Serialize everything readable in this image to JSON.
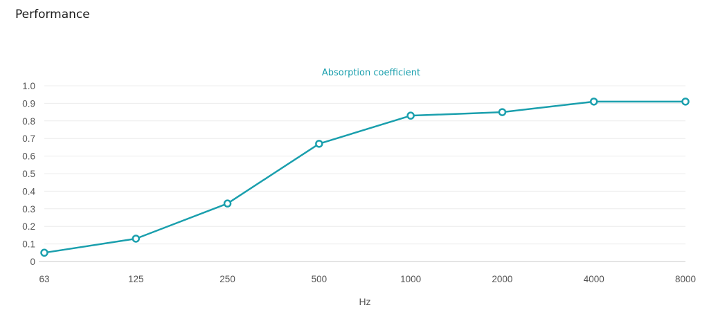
{
  "section": {
    "title": "Performance"
  },
  "chart_data": {
    "type": "line",
    "title": "Absorption coefficient",
    "xlabel": "Hz",
    "ylabel": "",
    "categories": [
      "63",
      "125",
      "250",
      "500",
      "1000",
      "2000",
      "4000",
      "8000"
    ],
    "series": [
      {
        "values": [
          0.05,
          0.13,
          0.33,
          0.67,
          0.83,
          0.85,
          0.91,
          0.91
        ]
      }
    ],
    "ylim": [
      0,
      1.0
    ],
    "yticks": [
      "0",
      "0.1",
      "0.2",
      "0.3",
      "0.4",
      "0.5",
      "0.6",
      "0.7",
      "0.8",
      "0.9",
      "1.0"
    ],
    "grid": true,
    "legend": "none",
    "colors": {
      "series": "#1a9fad",
      "title": "#1a9fad",
      "grid": "#ececec",
      "axis": "#c9c9c9",
      "tick_text": "#555555"
    }
  }
}
